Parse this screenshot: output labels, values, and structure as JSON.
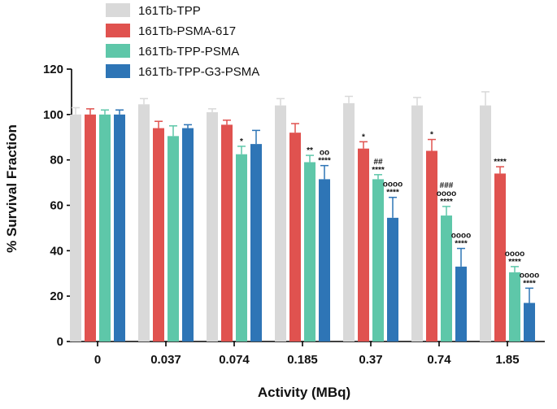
{
  "chart_data": {
    "type": "bar",
    "title": "",
    "xlabel": "Activity (MBq)",
    "ylabel": "% Survival Fraction",
    "ylim": [
      0,
      120
    ],
    "yticks": [
      0,
      20,
      40,
      60,
      80,
      100,
      120
    ],
    "categories": [
      "0",
      "0.037",
      "0.074",
      "0.185",
      "0.37",
      "0.74",
      "1.85"
    ],
    "legend_position": "top-left",
    "series": [
      {
        "name": "161Tb-TPP",
        "color": "#d9d9d9",
        "values": [
          100,
          104.5,
          101,
          104,
          105,
          104,
          104
        ],
        "errors": [
          3,
          2.5,
          1.5,
          3,
          3,
          3.5,
          6
        ],
        "annotations": [
          "",
          "",
          "",
          "",
          "",
          "",
          ""
        ]
      },
      {
        "name": "161Tb-PSMA-617",
        "color": "#e0524f",
        "values": [
          100,
          94,
          95.5,
          92,
          85,
          84,
          74
        ],
        "errors": [
          2.5,
          3,
          2,
          4,
          3,
          5,
          3
        ],
        "annotations": [
          "",
          "",
          "",
          "",
          "*",
          "*",
          "****"
        ]
      },
      {
        "name": "161Tb-TPP-PSMA",
        "color": "#5ec7a9",
        "values": [
          100,
          90.5,
          82.5,
          79,
          71.5,
          55.5,
          30.5
        ],
        "errors": [
          2,
          4.5,
          3.5,
          3,
          2,
          4,
          2.5
        ],
        "annotations": [
          "",
          "",
          "*",
          "**",
          "##\n****",
          "###\noooo\n****",
          "oooo\n****"
        ]
      },
      {
        "name": "161Tb-TPP-G3-PSMA",
        "color": "#2e75b6",
        "values": [
          100,
          94,
          87,
          71.5,
          54.5,
          33,
          17
        ],
        "errors": [
          2,
          1.5,
          6,
          6,
          9,
          8,
          6.5
        ],
        "annotations": [
          "",
          "",
          "",
          "oo\n****",
          "oooo\n****",
          "oooo\n****",
          "oooo\n****"
        ]
      }
    ]
  }
}
